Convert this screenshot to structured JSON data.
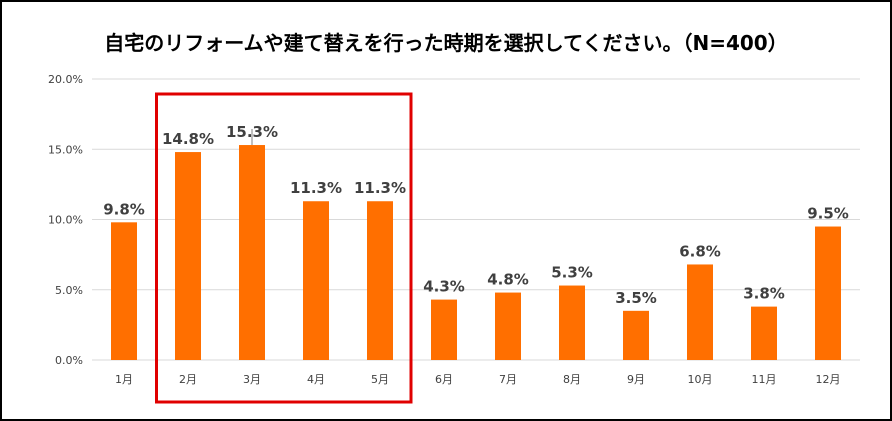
{
  "chart_data": {
    "type": "bar",
    "title": "自宅のリフォームや建て替えを行った時期を選択してください。（N=400）",
    "categories": [
      "1月",
      "2月",
      "3月",
      "4月",
      "5月",
      "6月",
      "7月",
      "8月",
      "9月",
      "10月",
      "11月",
      "12月"
    ],
    "values": [
      9.8,
      14.8,
      15.3,
      11.3,
      11.3,
      4.3,
      4.8,
      5.3,
      3.5,
      6.8,
      3.8,
      9.5
    ],
    "data_labels": [
      "9.8%",
      "14.8%",
      "15.3%",
      "11.3%",
      "11.3%",
      "4.3%",
      "4.8%",
      "5.3%",
      "3.5%",
      "6.8%",
      "3.8%",
      "9.5%"
    ],
    "yticks": [
      "0.0%",
      "5.0%",
      "10.0%",
      "15.0%",
      "20.0%"
    ],
    "ylim": [
      0,
      20
    ],
    "xlabel": "",
    "ylabel": "",
    "grid": true,
    "legend": "none",
    "highlight": {
      "from": "2月",
      "to": "5月"
    }
  },
  "colors": {
    "bar": "#FF6F00",
    "highlight_box": "#E00000",
    "grid": "#D9D9D9",
    "frame": "#000000"
  }
}
